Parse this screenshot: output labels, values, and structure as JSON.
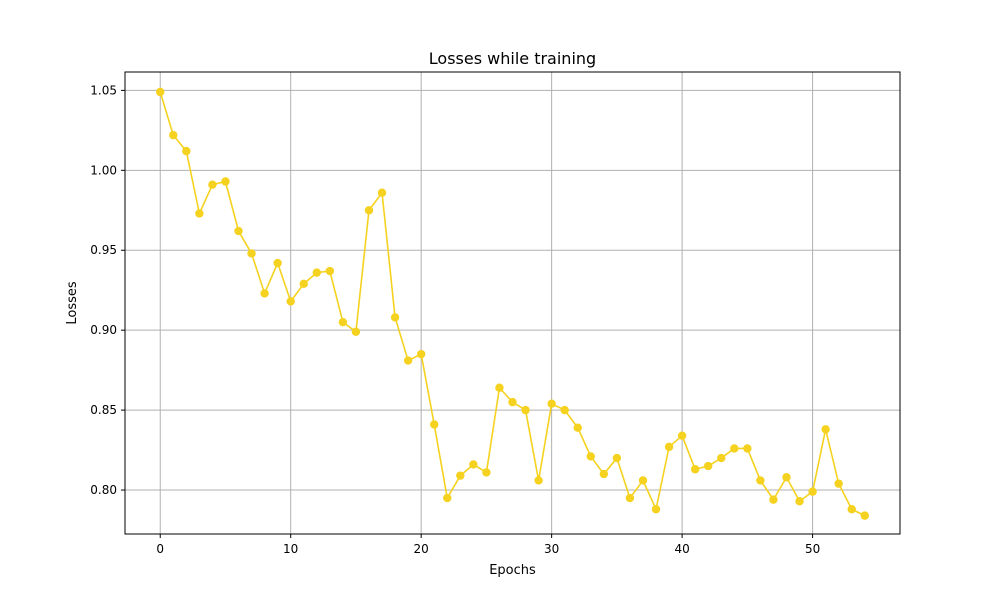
{
  "chart_data": {
    "type": "line",
    "title": "Losses while training",
    "xlabel": "Epochs",
    "ylabel": "Losses",
    "xlim": [
      -2.7,
      56.7
    ],
    "ylim": [
      0.7725,
      1.0615
    ],
    "xticks": [
      0,
      10,
      20,
      30,
      40,
      50
    ],
    "yticks": [
      0.8,
      0.85,
      0.9,
      0.95,
      1.0,
      1.05
    ],
    "ytick_labels": [
      "0.80",
      "0.85",
      "0.90",
      "0.95",
      "1.00",
      "1.05"
    ],
    "grid": true,
    "color": "#f5d21f",
    "series": [
      {
        "name": "Losses",
        "marker": "circle",
        "x": [
          0,
          1,
          2,
          3,
          4,
          5,
          6,
          7,
          8,
          9,
          10,
          11,
          12,
          13,
          14,
          15,
          16,
          17,
          18,
          19,
          20,
          21,
          22,
          23,
          24,
          25,
          26,
          27,
          28,
          29,
          30,
          31,
          32,
          33,
          34,
          35,
          36,
          37,
          38,
          39,
          40,
          41,
          42,
          43,
          44,
          45,
          46,
          47,
          48,
          49,
          50,
          51,
          52,
          53,
          54
        ],
        "values": [
          1.049,
          1.022,
          1.012,
          0.973,
          0.991,
          0.993,
          0.962,
          0.948,
          0.923,
          0.942,
          0.918,
          0.929,
          0.936,
          0.937,
          0.905,
          0.899,
          0.975,
          0.986,
          0.908,
          0.881,
          0.885,
          0.841,
          0.795,
          0.809,
          0.816,
          0.811,
          0.864,
          0.855,
          0.85,
          0.806,
          0.854,
          0.85,
          0.839,
          0.821,
          0.81,
          0.82,
          0.795,
          0.806,
          0.788,
          0.827,
          0.834,
          0.813,
          0.815,
          0.82,
          0.826,
          0.826,
          0.806,
          0.794,
          0.808,
          0.793,
          0.799,
          0.838,
          0.804,
          0.788,
          0.784
        ]
      }
    ]
  }
}
